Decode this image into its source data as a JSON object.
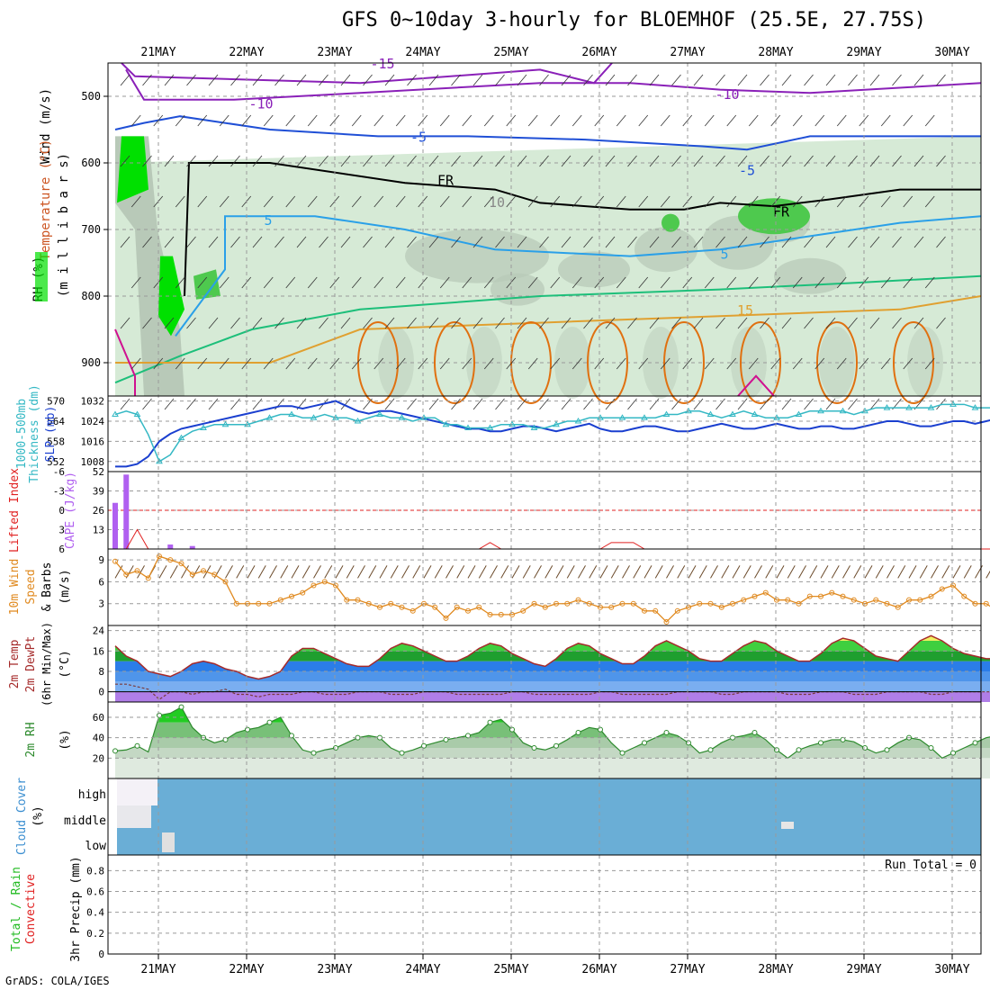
{
  "title": "GFS 0~10day 3-hourly for BLOEMHOF (25.5E, 27.75S)",
  "footer": "GrADS: COLA/IGES",
  "colors": {
    "rh_light": "#d6ead6",
    "rh_mid": "#b8c9b8",
    "rh_dark": "#4ec94e",
    "rh_bright": "#00e000",
    "t_minus15": "#8a20b8",
    "t_minus10": "#8a20b8",
    "t_minus5": "#1f4fd6",
    "t_freeze": "#000000",
    "t_5": "#2aa0e8",
    "t_10": "#1dbf7a",
    "t_15": "#e0a030",
    "t_20": "#e07010",
    "t_25": "#d01090",
    "slp": "#1a3fcf",
    "thickness": "#34b8c4",
    "cape": "#b060f0",
    "lifted": "#e02020",
    "wind10": "#e08a20",
    "barb": "#6b4a2a",
    "temp_dark": "#a52a2a",
    "rh_line": "#2d8a2d",
    "cloud": "#6aaed6"
  },
  "chart_data": [
    {
      "type": "contour",
      "panel": "upper-air",
      "ylabel_parts": [
        "RH (%)",
        "Temperature (°C)",
        "Wind (m/s)"
      ],
      "ylabel_inner": "(m i l l i b a r s)",
      "yticks": [
        "500",
        "600",
        "700",
        "800",
        "900"
      ],
      "ylim": [
        450,
        950
      ],
      "contour_labels": [
        "-15",
        "-10",
        "-10",
        "-5",
        "-5",
        "FR",
        "FR",
        "5",
        "5",
        "15",
        "10"
      ],
      "grid": true
    },
    {
      "type": "line",
      "panel": "slp-thickness",
      "ylabel_left": [
        "1000-500mb",
        "Thickness (dm)"
      ],
      "ylabel_right": "SLP (mb)",
      "yticks_left": [
        "570",
        "564",
        "558",
        "552"
      ],
      "yticks_right": [
        "1032",
        "1024",
        "1016",
        "1008"
      ],
      "ylim_slp": [
        1004,
        1034
      ],
      "series": [
        {
          "name": "SLP (mb)",
          "values": [
            1006,
            1006,
            1007,
            1010,
            1016,
            1019,
            1021,
            1022,
            1023,
            1024,
            1025,
            1026,
            1027,
            1028,
            1029,
            1030,
            1030,
            1029,
            1030,
            1031,
            1032,
            1030,
            1028,
            1027,
            1028,
            1028,
            1027,
            1026,
            1025,
            1024,
            1023,
            1022,
            1021,
            1021,
            1020,
            1020,
            1021,
            1022,
            1022,
            1021,
            1020,
            1021,
            1022,
            1023,
            1021,
            1020,
            1020,
            1021,
            1022,
            1022,
            1021,
            1020,
            1020,
            1021,
            1022,
            1023,
            1022,
            1021,
            1021,
            1022,
            1023,
            1022,
            1021,
            1021,
            1022,
            1022,
            1021,
            1021,
            1022,
            1023,
            1024,
            1024,
            1023,
            1022,
            1022,
            1023,
            1024,
            1024,
            1023,
            1024,
            1025
          ]
        },
        {
          "name": "1000-500mb Thickness (dm)",
          "values": [
            566,
            567,
            566,
            560,
            552,
            554,
            559,
            561,
            562,
            563,
            563,
            563,
            563,
            564,
            565,
            566,
            566,
            565,
            565,
            566,
            565,
            565,
            564,
            565,
            566,
            565,
            565,
            564,
            565,
            565,
            563,
            563,
            562,
            562,
            562,
            563,
            563,
            563,
            562,
            562,
            563,
            564,
            564,
            565,
            565,
            565,
            565,
            565,
            565,
            565,
            566,
            566,
            567,
            567,
            566,
            565,
            566,
            567,
            566,
            565,
            565,
            565,
            566,
            567,
            567,
            567,
            567,
            566,
            567,
            568,
            568,
            568,
            568,
            568,
            568,
            569,
            569,
            569,
            568,
            568,
            568
          ]
        }
      ]
    },
    {
      "type": "bar",
      "panel": "cape-lifted",
      "ylabel_left": "Lifted Index",
      "ylabel_right": "CAPE (J/kg)",
      "yticks_left": [
        "-6",
        "-3",
        "0",
        "3",
        "6"
      ],
      "yticks_right": [
        "52",
        "39",
        "26",
        "13"
      ],
      "ylim_cape": [
        0,
        52
      ],
      "series": [
        {
          "name": "CAPE (J/kg)",
          "values": [
            31,
            50,
            0,
            0,
            0,
            3,
            0,
            2,
            0,
            0,
            0,
            0,
            0,
            0,
            0,
            0,
            0,
            0,
            0,
            0,
            0,
            0,
            0,
            0,
            0,
            0,
            0,
            0,
            0,
            0,
            0,
            0,
            0,
            0,
            0,
            0,
            0,
            0,
            0,
            0,
            0,
            0,
            0,
            0,
            0,
            0,
            0,
            0,
            0,
            0,
            0,
            0,
            0,
            0,
            0,
            0,
            0,
            0,
            0,
            0,
            0,
            0,
            0,
            0,
            0,
            0,
            0,
            0,
            0,
            0,
            0,
            0,
            0,
            0,
            0,
            0,
            0,
            0,
            0,
            0,
            0
          ]
        },
        {
          "name": "Lifted Index",
          "values": [
            6,
            6,
            3,
            6,
            6,
            6,
            6,
            6,
            6,
            6,
            6,
            6,
            6,
            6,
            6,
            6,
            6,
            6,
            6,
            6,
            6,
            6,
            6,
            6,
            6,
            6,
            6,
            6,
            6,
            6,
            6,
            6,
            6,
            6,
            5,
            6,
            6,
            6,
            6,
            6,
            6,
            6,
            6,
            6,
            6,
            5,
            5,
            5,
            6,
            6,
            6,
            6,
            6,
            6,
            6,
            6,
            6,
            6,
            6,
            6,
            6,
            6,
            6,
            6,
            6,
            6,
            6,
            6,
            6,
            6,
            6,
            6,
            6,
            6,
            6,
            6,
            6,
            6,
            6,
            6,
            6
          ]
        }
      ]
    },
    {
      "type": "line",
      "panel": "wind10",
      "ylabel_parts": [
        "10m Wind",
        "Speed",
        "& Barbs"
      ],
      "ylabel_right": "(m/s)",
      "yticks": [
        "9",
        "6",
        "3"
      ],
      "ylim": [
        0,
        10.5
      ],
      "series": [
        {
          "name": "10m Wind Speed",
          "values": [
            8.8,
            7,
            7.5,
            6.5,
            9.5,
            9,
            8.5,
            7,
            7.5,
            7,
            6,
            3,
            3,
            3,
            3,
            3.5,
            4,
            4.5,
            5.5,
            6,
            5.5,
            3.5,
            3.5,
            3,
            2.5,
            3,
            2.5,
            2,
            3,
            2.5,
            1,
            2.5,
            2,
            2.5,
            1.5,
            1.5,
            1.5,
            2,
            3,
            2.5,
            3,
            3,
            3.5,
            3,
            2.5,
            2.5,
            3,
            3,
            2,
            2,
            0.5,
            2,
            2.5,
            3,
            3,
            2.5,
            3,
            3.5,
            4,
            4.5,
            3.5,
            3.5,
            3,
            4,
            4,
            4.5,
            4,
            3.5,
            3,
            3.5,
            3,
            2.5,
            3.5,
            3.5,
            4,
            5,
            5.5,
            4,
            3,
            3,
            2
          ]
        }
      ]
    },
    {
      "type": "area",
      "panel": "temp-dewpt",
      "ylabel_parts": [
        "2m Temp",
        "2m DewPt",
        "(6hr Min/Max)"
      ],
      "ylabel_right": "(°C)",
      "yticks": [
        "24",
        "16",
        "8",
        "0"
      ],
      "ylim": [
        -4,
        26
      ],
      "series": [
        {
          "name": "2m Temp",
          "values": [
            18,
            14,
            12,
            8,
            7,
            6,
            8,
            11,
            12,
            11,
            9,
            8,
            6,
            5,
            6,
            8,
            14,
            17,
            17,
            15,
            13,
            11,
            10,
            10,
            13,
            17,
            19,
            18,
            16,
            14,
            12,
            12,
            14,
            17,
            19,
            18,
            15,
            13,
            11,
            10,
            13,
            17,
            19,
            18,
            15,
            13,
            11,
            11,
            14,
            18,
            20,
            18,
            16,
            13,
            12,
            12,
            15,
            18,
            20,
            19,
            16,
            14,
            12,
            12,
            15,
            19,
            21,
            20,
            17,
            14,
            13,
            12,
            16,
            20,
            22,
            20,
            17,
            15,
            14,
            13,
            13
          ]
        },
        {
          "name": "2m DewPt",
          "values": [
            3,
            3,
            2,
            1,
            -3,
            0,
            0,
            -1,
            0,
            0,
            1,
            -1,
            -1,
            -2,
            -1,
            -1,
            -1,
            0,
            0,
            -1,
            -1,
            -1,
            0,
            0,
            0,
            -1,
            -1,
            -1,
            0,
            0,
            0,
            -1,
            -1,
            -1,
            -1,
            -1,
            0,
            0,
            -1,
            -1,
            -1,
            -1,
            -1,
            -1,
            0,
            0,
            -1,
            -1,
            -1,
            -1,
            -1,
            0,
            0,
            0,
            0,
            -1,
            -1,
            0,
            0,
            0,
            0,
            -1,
            -1,
            -1,
            0,
            0,
            0,
            -1,
            -1,
            -1,
            0,
            0,
            0,
            0,
            -1,
            -1,
            0,
            0,
            0,
            0,
            0
          ]
        }
      ]
    },
    {
      "type": "area",
      "panel": "rh2m",
      "ylabel": "2m RH",
      "ylabel_right": "(%)",
      "yticks": [
        "60",
        "40",
        "20"
      ],
      "ylim": [
        0,
        75
      ],
      "series": [
        {
          "name": "2m RH",
          "values": [
            27,
            28,
            32,
            26,
            62,
            64,
            70,
            50,
            40,
            35,
            38,
            45,
            48,
            50,
            55,
            60,
            42,
            28,
            25,
            28,
            30,
            35,
            40,
            42,
            40,
            30,
            25,
            28,
            32,
            35,
            38,
            40,
            42,
            45,
            55,
            58,
            48,
            35,
            30,
            28,
            32,
            38,
            45,
            50,
            48,
            35,
            25,
            30,
            35,
            40,
            45,
            42,
            35,
            25,
            28,
            35,
            40,
            42,
            45,
            38,
            28,
            20,
            28,
            32,
            35,
            38,
            38,
            36,
            30,
            25,
            28,
            35,
            40,
            38,
            30,
            20,
            25,
            30,
            35,
            40,
            42
          ]
        }
      ]
    },
    {
      "type": "heatmap",
      "panel": "cloud-cover",
      "ylabel": "Cloud Cover",
      "ylabel_right": "(%)",
      "row_labels": [
        "high",
        "middle",
        "low"
      ],
      "values": {
        "high": [
          95,
          95,
          95,
          95,
          95,
          60
        ],
        "middle": [
          40,
          10,
          0,
          0,
          0,
          0
        ],
        "low": [
          5,
          15,
          15,
          0,
          0,
          0
        ]
      }
    },
    {
      "type": "bar",
      "panel": "precip",
      "ylabel_left": [
        "Total / Rain",
        "Convective"
      ],
      "ylabel_right": "3hr Precip (mm)",
      "yticks": [
        "0.8",
        "0.6",
        "0.4",
        "0.2",
        "0"
      ],
      "ylim": [
        0,
        0.95
      ],
      "annotation": "Run Total = 0",
      "values": [
        0
      ]
    }
  ],
  "x_axis": {
    "top_labels": [
      "21MAY",
      "22MAY",
      "23MAY",
      "24MAY",
      "25MAY",
      "26MAY",
      "27MAY",
      "28MAY",
      "29MAY",
      "30MAY"
    ],
    "bottom_labels": [
      "21MAY",
      "22MAY",
      "23MAY",
      "24MAY",
      "25MAY",
      "26MAY",
      "27MAY",
      "28MAY",
      "29MAY",
      "30MAY"
    ]
  }
}
